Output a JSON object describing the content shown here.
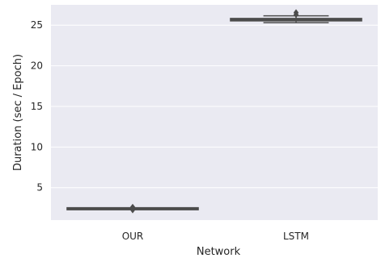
{
  "chart_data": {
    "type": "box",
    "title": "",
    "xlabel": "Network",
    "ylabel": "Duration (sec / Epoch)",
    "ylim": [
      1.0,
      27.5
    ],
    "yticks": [
      5,
      10,
      15,
      20,
      25
    ],
    "grid": true,
    "colors": {
      "background": "#eaeaf2",
      "grid": "#ffffff",
      "box_fill": "#e8e8f0",
      "line": "#4c4c4c"
    },
    "categories": [
      "OUR",
      "LSTM"
    ],
    "boxes": [
      {
        "category": "OUR",
        "whisker_low": 2.35,
        "q1": 2.38,
        "median": 2.4,
        "q3": 2.42,
        "whisker_high": 2.45,
        "outliers": [
          2.25,
          2.6
        ]
      },
      {
        "category": "LSTM",
        "whisker_low": 25.3,
        "q1": 25.55,
        "median": 25.7,
        "q3": 25.8,
        "whisker_high": 26.15,
        "outliers": [
          26.3,
          26.55
        ]
      }
    ]
  }
}
